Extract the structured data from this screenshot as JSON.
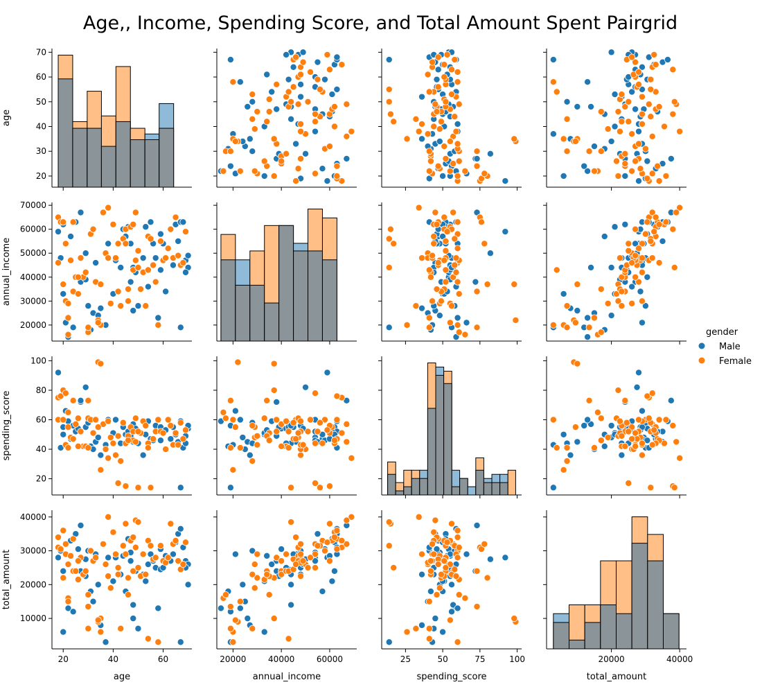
{
  "chart_data": {
    "type": "pairgrid",
    "title": "Age,, Income, Spending Score, and Total Amount Spent Pairgrid",
    "variables": [
      "age",
      "annual_income",
      "spending_score",
      "total_amount"
    ],
    "hue": "gender",
    "legend": {
      "title": "gender",
      "placement": "center-right",
      "entries": [
        "Male",
        "Female"
      ]
    },
    "colors": {
      "Male": "#1f77b4",
      "Female": "#ff7f0e",
      "overlap": "#8a9499"
    },
    "axes": {
      "age": {
        "lim": [
          15.5,
          71.5
        ],
        "ticks": [
          20,
          30,
          40,
          50,
          60,
          70
        ],
        "xticks": [
          20,
          40,
          60
        ]
      },
      "annual_income": {
        "lim": [
          13300,
          71200
        ],
        "ticks": [
          20000,
          30000,
          40000,
          50000,
          60000,
          70000
        ],
        "xticks": [
          20000,
          40000,
          60000
        ]
      },
      "spending_score": {
        "lim": [
          9,
          103
        ],
        "ticks": [
          20,
          40,
          60,
          80,
          100
        ],
        "xticks": [
          25,
          50,
          75,
          100
        ]
      },
      "total_amount": {
        "lim": [
          1000,
          42000
        ],
        "ticks": [
          10000,
          20000,
          30000,
          40000
        ],
        "xticks": [
          20000,
          40000
        ]
      }
    },
    "histograms": {
      "age": {
        "edges": [
          18,
          23.8,
          29.6,
          35.3,
          41.1,
          46.9,
          52.7,
          58.4,
          64.2,
          70
        ],
        "Male": [
          57,
          31,
          31,
          21.5,
          34.5,
          25,
          28,
          44
        ],
        "Female": [
          69.5,
          34.5,
          50.5,
          37.5,
          63.5,
          31,
          25,
          31
        ]
      },
      "annual_income": {
        "edges": [
          15000,
          21000,
          27000,
          33000,
          39000,
          45000,
          51000,
          57000,
          63000,
          69000
        ],
        "Male": [
          32,
          32,
          22,
          15,
          45.5,
          38.5,
          35.5,
          32
        ],
        "Female": [
          42,
          22,
          35.5,
          45.5,
          45.5,
          35.5,
          52,
          48.5
        ]
      },
      "spending_score": {
        "edges": [
          13,
          18.4,
          23.8,
          29.1,
          34.5,
          39.9,
          45.3,
          50.7,
          56.1,
          61.4,
          66.8,
          72.2,
          77.6,
          83,
          88.4,
          93.8,
          99
        ],
        "Male": [
          5,
          1,
          2,
          4,
          6,
          21,
          31,
          27,
          6,
          4,
          2,
          6,
          4,
          5,
          5,
          0
        ],
        "Female": [
          8,
          3,
          6,
          6,
          4,
          32,
          29,
          30,
          2,
          4,
          0,
          9,
          3,
          3,
          3,
          6
        ]
      },
      "total_amount": {
        "edges": [
          3000,
          7600,
          12200,
          16800,
          21400,
          26000,
          30600,
          35200,
          39800
        ],
        "Male": [
          4,
          1,
          3,
          5,
          4,
          12,
          10,
          4,
          2
        ],
        "Female": [
          3,
          5,
          5,
          10,
          10,
          15,
          13,
          4,
          3
        ]
      }
    },
    "points": {
      "Male": {
        "age": [
          18,
          19,
          20,
          20,
          21,
          22,
          23,
          24,
          25,
          26,
          27,
          27,
          29,
          29,
          30,
          31,
          32,
          33,
          34,
          35,
          37,
          38,
          40,
          41,
          43,
          44,
          45,
          46,
          47,
          47,
          48,
          48,
          49,
          50,
          52,
          53,
          54,
          55,
          56,
          57,
          58,
          59,
          59,
          60,
          61,
          63,
          64,
          65,
          66,
          67,
          67,
          68,
          69,
          70,
          70,
          69
        ],
        "annual_income": [
          59000,
          48000,
          62000,
          33000,
          21000,
          15000,
          57000,
          19000,
          63000,
          40000,
          38000,
          67000,
          50000,
          39000,
          28000,
          18000,
          25000,
          46000,
          24000,
          27000,
          20000,
          54000,
          33000,
          47000,
          44000,
          60000,
          57000,
          61000,
          54000,
          38000,
          44000,
          26000,
          42000,
          28000,
          48000,
          61000,
          36000,
          63000,
          54000,
          48000,
          23000,
          43000,
          58000,
          54000,
          34000,
          60000,
          45000,
          62000,
          55000,
          63000,
          19000,
          63000,
          47000,
          49000,
          44000,
          42000
        ],
        "spending_score": [
          92,
          41,
          55,
          50,
          66,
          59,
          47,
          56,
          52,
          54,
          72,
          73,
          82,
          55,
          58,
          42,
          40,
          45,
          48,
          36,
          43,
          60,
          51,
          60,
          44,
          55,
          50,
          52,
          48,
          49,
          57,
          45,
          54,
          44,
          36,
          50,
          59,
          47,
          46,
          56,
          60,
          55,
          46,
          52,
          53,
          47,
          55,
          50,
          45,
          59,
          14,
          41,
          49,
          54,
          56,
          44
        ],
        "total_amount": [
          28000,
          30000,
          24000,
          6000,
          29000,
          13000,
          33000,
          12000,
          35000,
          30500,
          24000,
          37500,
          27500,
          22500,
          30000,
          18000,
          15000,
          29000,
          20000,
          8000,
          3000,
          28000,
          21000,
          28000,
          23000,
          28500,
          18000,
          33500,
          29500,
          27000,
          14000,
          10000,
          24000,
          7000,
          23000,
          21000,
          26000,
          29000,
          27000,
          25000,
          13000,
          24500,
          30500,
          25000,
          28500,
          27000,
          29000,
          32500,
          35000,
          36500,
          3000,
          31000,
          27000,
          26000,
          20000,
          25000
        ]
      },
      "Female": {
        "age": [
          18,
          18,
          19,
          20,
          21,
          21,
          22,
          22,
          23,
          24,
          24,
          25,
          26,
          27,
          28,
          29,
          30,
          30,
          31,
          32,
          33,
          34,
          35,
          35,
          36,
          37,
          38,
          39,
          40,
          41,
          42,
          43,
          44,
          45,
          45,
          46,
          47,
          48,
          48,
          49,
          49,
          50,
          51,
          52,
          53,
          54,
          55,
          56,
          57,
          58,
          59,
          60,
          61,
          62,
          63,
          64,
          65,
          66,
          67,
          68,
          69,
          20,
          22,
          26,
          30,
          34,
          38,
          42,
          46,
          50,
          54
        ],
        "annual_income": [
          65000,
          46000,
          63000,
          37000,
          30000,
          54000,
          16000,
          29000,
          47000,
          34000,
          63000,
          40000,
          33000,
          48000,
          40000,
          42000,
          19000,
          17000,
          58000,
          60000,
          38000,
          22000,
          37000,
          20000,
          67000,
          50000,
          69000,
          29000,
          62000,
          48000,
          54000,
          28000,
          56000,
          54000,
          60000,
          30000,
          61000,
          62000,
          43000,
          67000,
          47000,
          44000,
          35000,
          42000,
          28000,
          57000,
          56000,
          45000,
          38000,
          20000,
          55000,
          47000,
          48000,
          52000,
          60000,
          48000,
          65000,
          49000,
          45000,
          46000,
          59000,
          63000,
          23000,
          40000,
          19000,
          21000,
          48000,
          34000,
          35000,
          51000,
          43000
        ],
        "spending_score": [
          75,
          60,
          76,
          80,
          43,
          78,
          65,
          55,
          48,
          73,
          47,
          57,
          61,
          52,
          42,
          42,
          73,
          61,
          60,
          51,
          60,
          99,
          98,
          26,
          57,
          40,
          34,
          48,
          44,
          36,
          17,
          32,
          58,
          44,
          15,
          49,
          55,
          46,
          52,
          45,
          61,
          14,
          51,
          59,
          56,
          44,
          14,
          47,
          52,
          60,
          52,
          51,
          40,
          60,
          56,
          43,
          51,
          43,
          58,
          47,
          53,
          60,
          41,
          42,
          41,
          55,
          59,
          49,
          46,
          52,
          41
        ],
        "total_amount": [
          31000,
          34000,
          30500,
          22000,
          29000,
          32000,
          16000,
          26000,
          28500,
          24000,
          33500,
          24000,
          21500,
          28000,
          23000,
          24000,
          13500,
          17000,
          30000,
          27000,
          28000,
          9000,
          10000,
          6000,
          32000,
          26000,
          40000,
          19000,
          35500,
          29000,
          25000,
          7000,
          31500,
          29000,
          38000,
          22000,
          33000,
          34000,
          24000,
          39000,
          31000,
          38500,
          22500,
          29000,
          23000,
          33000,
          31500,
          27500,
          28000,
          3000,
          31500,
          27000,
          26500,
          28000,
          38000,
          32000,
          33000,
          27000,
          24500,
          26000,
          32500,
          36000,
          15000,
          27000,
          7000,
          9500,
          22500,
          23000,
          17000,
          25000,
          4000
        ]
      }
    }
  }
}
